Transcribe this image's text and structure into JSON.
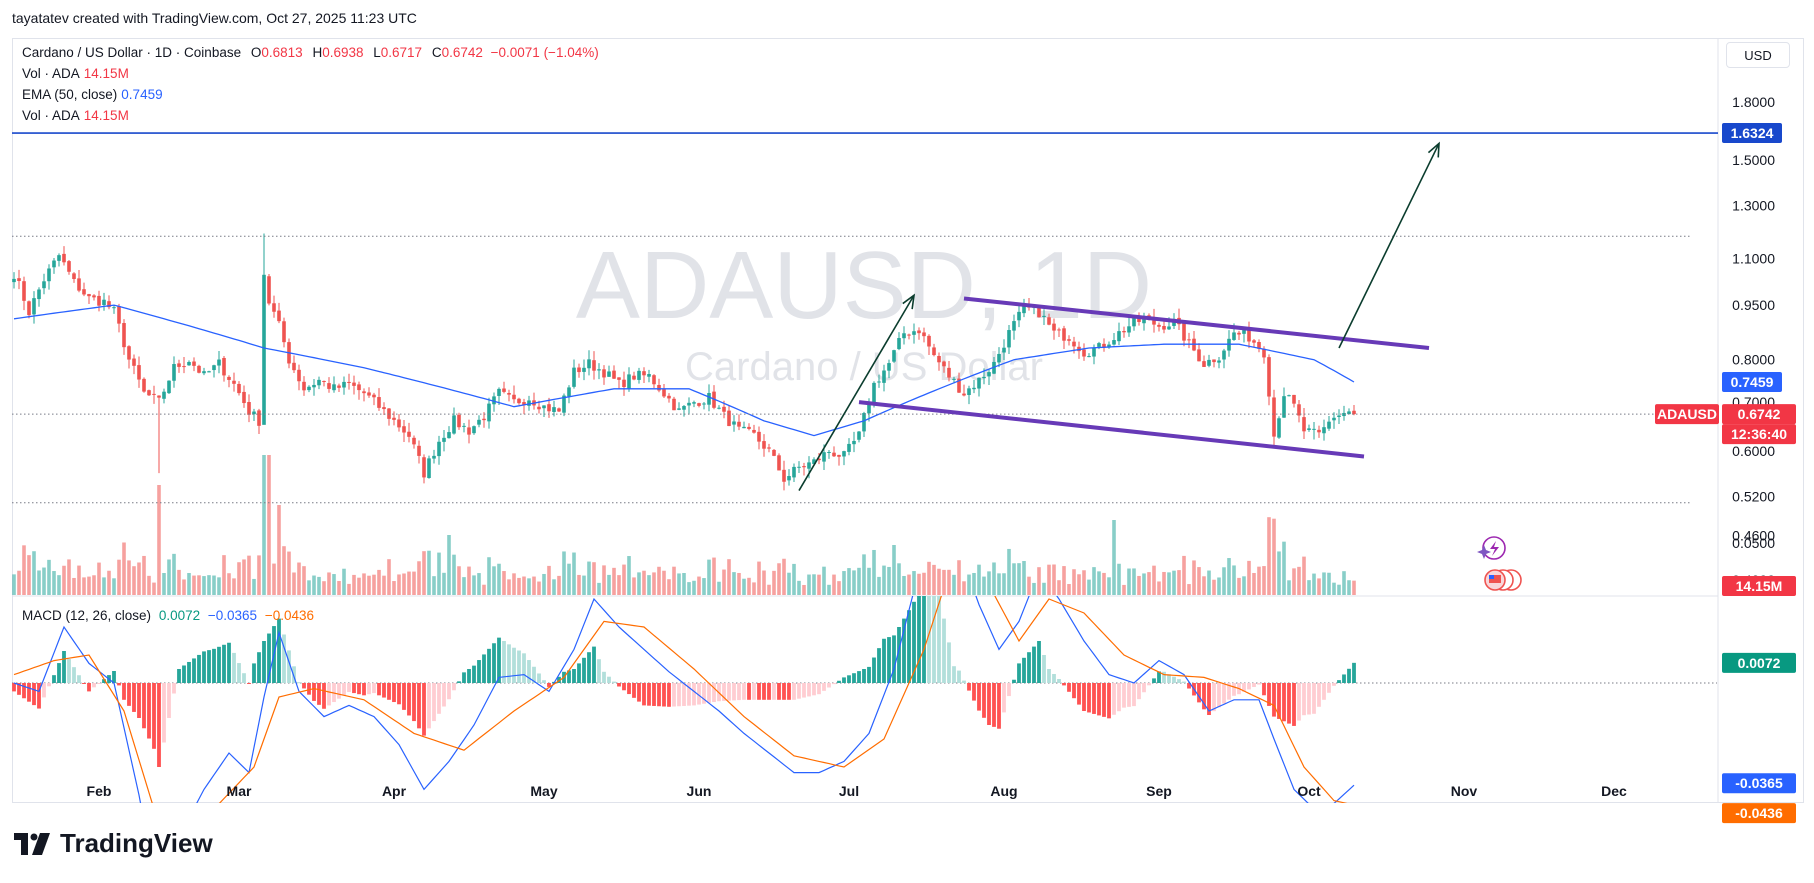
{
  "header": {
    "credit": "tayatatev created with TradingView.com, Oct 27, 2025 11:23 UTC"
  },
  "legend": {
    "symbol_line": "Cardano / US Dollar · 1D · Coinbase",
    "o_key": "O",
    "o_val": "0.6813",
    "h_key": "H",
    "h_val": "0.6938",
    "l_key": "L",
    "l_val": "0.6717",
    "c_key": "C",
    "c_val": "0.6742",
    "change": "−0.0071 (−1.04%)",
    "vol1_label": "Vol · ADA",
    "vol1_value": "14.15M",
    "ema_label": "EMA (50, close)",
    "ema_value": "0.7459",
    "vol2_label": "Vol · ADA",
    "vol2_value": "14.15M",
    "macd_label": "MACD (12, 26, close)",
    "macd_hist": "0.0072",
    "macd_line": "−0.0365",
    "macd_signal": "−0.0436"
  },
  "currency": "USD",
  "watermark": {
    "big": "ADAUSD, 1D",
    "sub": "Cardano / US Dollar"
  },
  "tags": {
    "target": "1.6324",
    "ema": "0.7459",
    "symbol": "ADAUSD",
    "price": "0.6742",
    "countdown": "12:36:40",
    "volume": "14.15M",
    "macd_hist": "0.0072",
    "macd_line": "-0.0365",
    "macd_signal": "-0.0436"
  },
  "logo": {
    "text": "TradingView"
  },
  "colors": {
    "up": "#26a69a",
    "down": "#ef5350",
    "ema": "#2962ff",
    "channel": "#673ab7",
    "hline": "#1848cc",
    "macd": "#2962ff",
    "signal": "#ff6d00",
    "arrow": "#0b3d2e"
  },
  "chart_data": [
    {
      "type": "candlestick",
      "title": "Cardano / US Dollar · 1D · Coinbase",
      "x_ticks": [
        "Feb",
        "Mar",
        "Apr",
        "May",
        "Jun",
        "Jul",
        "Aug",
        "Sep",
        "Oct",
        "Nov",
        "Dec"
      ],
      "y_ticks": [
        "1.8000",
        "1.5000",
        "1.3000",
        "1.1000",
        "0.9500",
        "0.8000",
        "0.7000",
        "0.6000",
        "0.5200",
        "0.4600",
        "0.4000"
      ],
      "scale": "log",
      "ylim": [
        0.395,
        1.9
      ],
      "last": {
        "open": 0.6813,
        "high": 0.6938,
        "low": 0.6717,
        "close": 0.6742
      },
      "close_path": [
        [
          0,
          1.05
        ],
        [
          3,
          0.93
        ],
        [
          6,
          1.03
        ],
        [
          9,
          1.11
        ],
        [
          12,
          1.02
        ],
        [
          15,
          0.97
        ],
        [
          18,
          0.96
        ],
        [
          20,
          0.93
        ],
        [
          23,
          0.8
        ],
        [
          26,
          0.72
        ],
        [
          29,
          0.7
        ],
        [
          32,
          0.78
        ],
        [
          35,
          0.8
        ],
        [
          38,
          0.76
        ],
        [
          41,
          0.79
        ],
        [
          44,
          0.74
        ],
        [
          47,
          0.68
        ],
        [
          49,
          0.66
        ],
        [
          50,
          1.05
        ],
        [
          51,
          0.96
        ],
        [
          53,
          0.89
        ],
        [
          55,
          0.8
        ],
        [
          58,
          0.73
        ],
        [
          61,
          0.75
        ],
        [
          64,
          0.73
        ],
        [
          67,
          0.74
        ],
        [
          70,
          0.72
        ],
        [
          73,
          0.69
        ],
        [
          76,
          0.66
        ],
        [
          79,
          0.63
        ],
        [
          82,
          0.56
        ],
        [
          85,
          0.62
        ],
        [
          88,
          0.66
        ],
        [
          91,
          0.64
        ],
        [
          94,
          0.67
        ],
        [
          97,
          0.72
        ],
        [
          100,
          0.7
        ],
        [
          103,
          0.71
        ],
        [
          106,
          0.69
        ],
        [
          109,
          0.68
        ],
        [
          112,
          0.77
        ],
        [
          115,
          0.79
        ],
        [
          118,
          0.77
        ],
        [
          121,
          0.74
        ],
        [
          124,
          0.76
        ],
        [
          127,
          0.76
        ],
        [
          130,
          0.72
        ],
        [
          133,
          0.68
        ],
        [
          136,
          0.7
        ],
        [
          139,
          0.71
        ],
        [
          142,
          0.67
        ],
        [
          145,
          0.64
        ],
        [
          148,
          0.63
        ],
        [
          151,
          0.6
        ],
        [
          154,
          0.55
        ],
        [
          157,
          0.57
        ],
        [
          160,
          0.58
        ],
        [
          163,
          0.6
        ],
        [
          166,
          0.59
        ],
        [
          169,
          0.63
        ],
        [
          172,
          0.74
        ],
        [
          175,
          0.79
        ],
        [
          178,
          0.87
        ],
        [
          181,
          0.88
        ],
        [
          184,
          0.81
        ],
        [
          187,
          0.76
        ],
        [
          190,
          0.72
        ],
        [
          193,
          0.75
        ],
        [
          196,
          0.79
        ],
        [
          199,
          0.87
        ],
        [
          202,
          0.94
        ],
        [
          205,
          0.93
        ],
        [
          208,
          0.87
        ],
        [
          211,
          0.86
        ],
        [
          214,
          0.82
        ],
        [
          217,
          0.83
        ],
        [
          220,
          0.86
        ],
        [
          223,
          0.89
        ],
        [
          226,
          0.91
        ],
        [
          229,
          0.89
        ],
        [
          232,
          0.9
        ],
        [
          235,
          0.84
        ],
        [
          238,
          0.79
        ],
        [
          241,
          0.81
        ],
        [
          244,
          0.87
        ],
        [
          247,
          0.86
        ],
        [
          250,
          0.82
        ],
        [
          252,
          0.63
        ],
        [
          254,
          0.72
        ],
        [
          256,
          0.69
        ],
        [
          258,
          0.64
        ],
        [
          261,
          0.63
        ],
        [
          264,
          0.67
        ],
        [
          267,
          0.68
        ]
      ],
      "ema50_path": [
        [
          0,
          0.91
        ],
        [
          20,
          0.95
        ],
        [
          40,
          0.87
        ],
        [
          50,
          0.83
        ],
        [
          70,
          0.78
        ],
        [
          100,
          0.69
        ],
        [
          120,
          0.73
        ],
        [
          135,
          0.73
        ],
        [
          150,
          0.66
        ],
        [
          160,
          0.63
        ],
        [
          170,
          0.66
        ],
        [
          185,
          0.73
        ],
        [
          200,
          0.8
        ],
        [
          215,
          0.83
        ],
        [
          230,
          0.84
        ],
        [
          245,
          0.84
        ],
        [
          260,
          0.8
        ],
        [
          268,
          0.7459
        ]
      ],
      "horizontal_line": 1.6324,
      "dotted_levels": [
        1.18,
        0.51
      ],
      "channel": {
        "upper": [
          [
            190,
            0.97
          ],
          [
            283,
            0.83
          ]
        ],
        "lower": [
          [
            169,
            0.7
          ],
          [
            270,
            0.59
          ]
        ]
      },
      "arrows": [
        {
          "from": [
            157,
            0.53
          ],
          "to": [
            180,
            0.98
          ]
        },
        {
          "from": [
            265,
            0.83
          ],
          "to": [
            285,
            1.58
          ]
        }
      ]
    },
    {
      "type": "bar",
      "title": "Vol · ADA",
      "last_value": "14.15M"
    },
    {
      "type": "macd",
      "title": "MACD (12, 26, close)",
      "y_ticks": [
        "0.0500"
      ],
      "ylim": [
        -0.095,
        0.068
      ],
      "last": {
        "histogram": 0.0072,
        "macd": -0.0365,
        "signal": -0.0436
      },
      "macd_path": [
        [
          0,
          0.0
        ],
        [
          5,
          -0.003
        ],
        [
          10,
          0.02
        ],
        [
          15,
          0.007
        ],
        [
          20,
          0.0
        ],
        [
          25,
          -0.04
        ],
        [
          29,
          -0.078
        ],
        [
          33,
          -0.055
        ],
        [
          38,
          -0.038
        ],
        [
          43,
          -0.025
        ],
        [
          47,
          -0.032
        ],
        [
          50,
          -0.005
        ],
        [
          53,
          0.018
        ],
        [
          57,
          -0.003
        ],
        [
          62,
          -0.012
        ],
        [
          67,
          -0.008
        ],
        [
          72,
          -0.012
        ],
        [
          77,
          -0.022
        ],
        [
          82,
          -0.038
        ],
        [
          87,
          -0.028
        ],
        [
          92,
          -0.015
        ],
        [
          97,
          0.002
        ],
        [
          102,
          0.003
        ],
        [
          107,
          -0.003
        ],
        [
          112,
          0.012
        ],
        [
          116,
          0.03
        ],
        [
          121,
          0.02
        ],
        [
          126,
          0.012
        ],
        [
          131,
          0.004
        ],
        [
          136,
          -0.003
        ],
        [
          141,
          -0.01
        ],
        [
          146,
          -0.018
        ],
        [
          151,
          -0.025
        ],
        [
          156,
          -0.032
        ],
        [
          161,
          -0.032
        ],
        [
          166,
          -0.028
        ],
        [
          171,
          -0.018
        ],
        [
          176,
          0.005
        ],
        [
          181,
          0.04
        ],
        [
          185,
          0.06
        ],
        [
          189,
          0.048
        ],
        [
          193,
          0.028
        ],
        [
          197,
          0.012
        ],
        [
          201,
          0.022
        ],
        [
          205,
          0.04
        ],
        [
          209,
          0.03
        ],
        [
          214,
          0.015
        ],
        [
          219,
          0.003
        ],
        [
          224,
          0.0
        ],
        [
          229,
          0.008
        ],
        [
          234,
          0.003
        ],
        [
          239,
          -0.01
        ],
        [
          244,
          -0.006
        ],
        [
          249,
          -0.006
        ],
        [
          252,
          -0.02
        ],
        [
          256,
          -0.038
        ],
        [
          260,
          -0.045
        ],
        [
          264,
          -0.043
        ],
        [
          268,
          -0.0365
        ]
      ],
      "signal_path": [
        [
          0,
          0.003
        ],
        [
          8,
          0.008
        ],
        [
          15,
          0.01
        ],
        [
          22,
          -0.01
        ],
        [
          28,
          -0.045
        ],
        [
          33,
          -0.06
        ],
        [
          40,
          -0.045
        ],
        [
          48,
          -0.03
        ],
        [
          53,
          -0.005
        ],
        [
          60,
          -0.002
        ],
        [
          70,
          -0.006
        ],
        [
          80,
          -0.018
        ],
        [
          90,
          -0.024
        ],
        [
          100,
          -0.01
        ],
        [
          110,
          0.002
        ],
        [
          118,
          0.022
        ],
        [
          126,
          0.02
        ],
        [
          136,
          0.005
        ],
        [
          146,
          -0.012
        ],
        [
          156,
          -0.026
        ],
        [
          166,
          -0.03
        ],
        [
          174,
          -0.02
        ],
        [
          182,
          0.012
        ],
        [
          188,
          0.045
        ],
        [
          195,
          0.035
        ],
        [
          201,
          0.015
        ],
        [
          207,
          0.03
        ],
        [
          214,
          0.025
        ],
        [
          222,
          0.01
        ],
        [
          230,
          0.003
        ],
        [
          238,
          0.002
        ],
        [
          245,
          -0.002
        ],
        [
          252,
          -0.008
        ],
        [
          258,
          -0.03
        ],
        [
          264,
          -0.042
        ],
        [
          268,
          -0.0436
        ]
      ]
    }
  ]
}
